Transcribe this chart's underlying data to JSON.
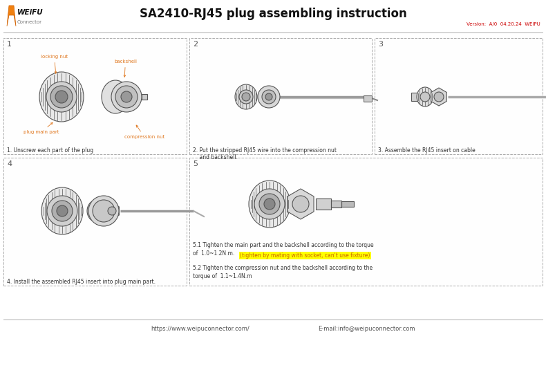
{
  "title": "SA2410-RJ45 plug assembling instruction",
  "version_text": "Version:  A/0  04.20.24  WEIPU",
  "logo_weipu": "WEiFU",
  "logo_connector": "Connector",
  "bg_color": "#ffffff",
  "footer_url": "https://www.weipuconnector.com/",
  "footer_email": "E-mail:info@weipuconnector.com",
  "step1_caption": "1. Unscrew each part of the plug",
  "step2_caption": "2. Put the stripped RJ45 wire into the compression nut\n    and backshell.",
  "step3_caption": "3. Assemble the RJ45 insert on cable",
  "step4_caption": "4. Install the assembled RJ45 insert into plug main part.",
  "step5_caption1": "5.1 Tighten the main part and the backshell according to the torque\nof  1.0~1.2N.m. ",
  "step5_highlight": "(tighten by mating with socket, can't use fixture)",
  "step5_caption2": "5.2 Tighten the compression nut and the backshell according to the\ntorque of  1.1~1.4N.m",
  "step1_labels": [
    "locking nut",
    "backshell",
    "plug main part",
    "compression nut"
  ],
  "orange": "#e07820",
  "dark": "#333333",
  "gray": "#888888",
  "lgray": "#aaaaaa",
  "title_fs": 12,
  "step_num_fs": 8,
  "caption_fs": 5.5,
  "label_fs": 5.0,
  "version_fs": 5.0,
  "footer_fs": 6.0
}
